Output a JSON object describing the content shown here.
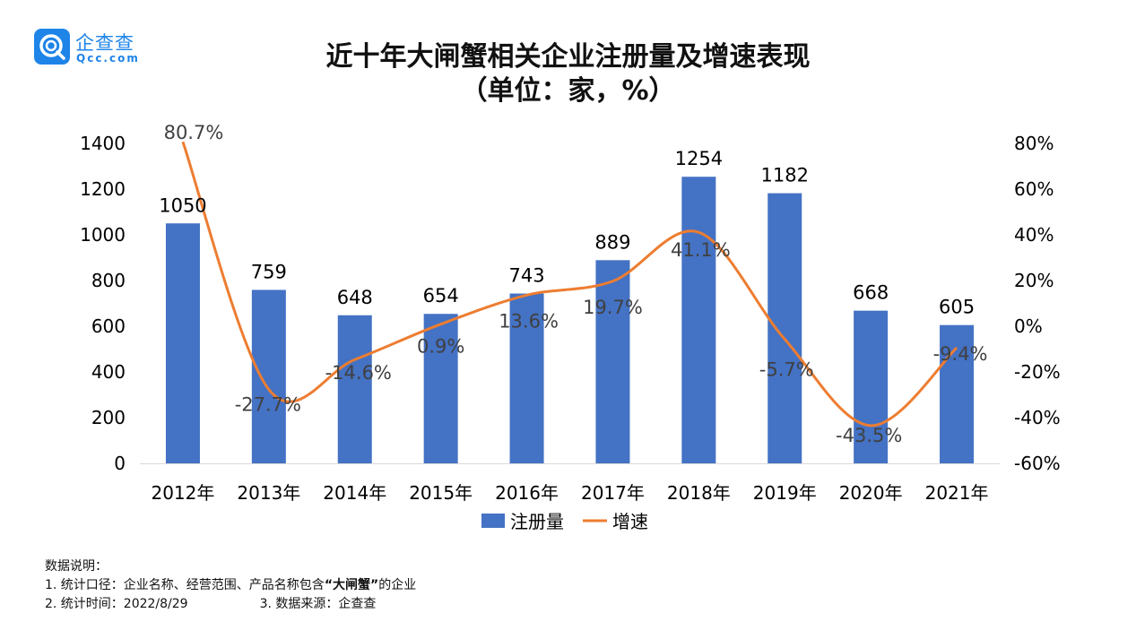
{
  "logo": {
    "name_cn": "企查查",
    "name_en": "Qcc.com"
  },
  "title": {
    "line1": "近十年大闸蟹相关企业注册量及增速表现",
    "line2": "（单位：家，%）"
  },
  "colors": {
    "bar": "#4472c4",
    "line": "#ed7d31",
    "text": "#000000",
    "line_label": "#404040",
    "axis": "#d9d9d9",
    "brand": "#1e84e8"
  },
  "chart_data": {
    "type": "bar+line",
    "title": "近十年大闸蟹相关企业注册量及增速表现（单位：家，%）",
    "categories": [
      "2012年",
      "2013年",
      "2014年",
      "2015年",
      "2016年",
      "2017年",
      "2018年",
      "2019年",
      "2020年",
      "2021年"
    ],
    "series": [
      {
        "name": "注册量",
        "type": "bar",
        "axis": "left",
        "values": [
          1050,
          759,
          648,
          654,
          743,
          889,
          1254,
          1182,
          668,
          605
        ],
        "labels": [
          "1050",
          "759",
          "648",
          "654",
          "743",
          "889",
          "1254",
          "1182",
          "668",
          "605"
        ]
      },
      {
        "name": "增速",
        "type": "line",
        "axis": "right",
        "smooth": true,
        "values": [
          80.7,
          -27.7,
          -14.6,
          0.9,
          13.6,
          19.7,
          41.1,
          -5.7,
          -43.5,
          -9.4
        ],
        "labels": [
          "80.7%",
          "-27.7%",
          "-14.6%",
          "0.9%",
          "13.6%",
          "19.7%",
          "41.1%",
          "-5.7%",
          "-43.5%",
          "-9.4%"
        ]
      }
    ],
    "y_left": {
      "lim": [
        0,
        1400
      ],
      "ticks": [
        "0",
        "200",
        "400",
        "600",
        "800",
        "1000",
        "1200",
        "1400"
      ]
    },
    "y_right": {
      "lim": [
        -60,
        80
      ],
      "ticks": [
        "-60%",
        "-40%",
        "-20%",
        "0%",
        "20%",
        "40%",
        "60%",
        "80%"
      ]
    },
    "grid": false,
    "legend": {
      "position": "bottom",
      "items": [
        "注册量",
        "增速"
      ]
    }
  },
  "notes": {
    "heading": "数据说明：",
    "line1_prefix": "1. 统计口径：企业名称、经营范围、产品名称包含",
    "line1_bold": "“大闸蟹”",
    "line1_suffix": "的企业",
    "line2_time": "2. 统计时间：2022/8/29",
    "line2_source": "3. 数据来源：企查查"
  }
}
